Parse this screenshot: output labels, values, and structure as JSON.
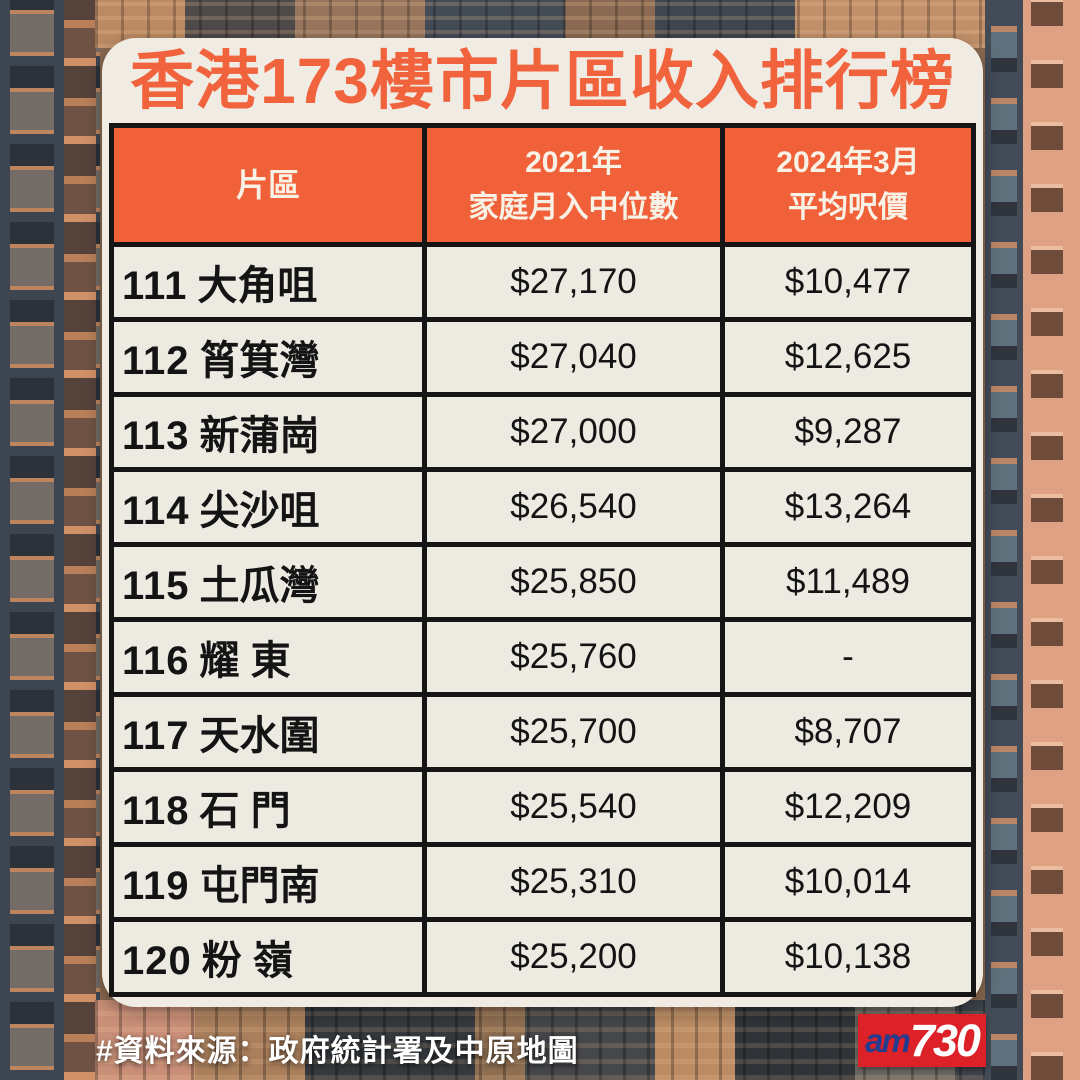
{
  "title": "香港173樓市片區收入排行榜",
  "table": {
    "headers": {
      "district": "片區",
      "income_line1": "2021年",
      "income_line2": "家庭月入中位數",
      "price_line1": "2024年3月",
      "price_line2": "平均呎價"
    },
    "rows": [
      {
        "rank": "111",
        "district": "大角咀",
        "income": "$27,170",
        "price": "$10,477"
      },
      {
        "rank": "112",
        "district": "筲箕灣",
        "income": "$27,040",
        "price": "$12,625"
      },
      {
        "rank": "113",
        "district": "新蒲崗",
        "income": "$27,000",
        "price": "$9,287"
      },
      {
        "rank": "114",
        "district": "尖沙咀",
        "income": "$26,540",
        "price": "$13,264"
      },
      {
        "rank": "115",
        "district": "土瓜灣",
        "income": "$25,850",
        "price": "$11,489"
      },
      {
        "rank": "116",
        "district": "耀 東",
        "income": "$25,760",
        "price": "-"
      },
      {
        "rank": "117",
        "district": "天水圍",
        "income": "$25,700",
        "price": "$8,707"
      },
      {
        "rank": "118",
        "district": "石 門",
        "income": "$25,540",
        "price": "$12,209"
      },
      {
        "rank": "119",
        "district": "屯門南",
        "income": "$25,310",
        "price": "$10,014"
      },
      {
        "rank": "120",
        "district": "粉 嶺",
        "income": "$25,200",
        "price": "$10,138"
      }
    ]
  },
  "footer": {
    "source": "#資料來源：政府統計署及中原地圖"
  },
  "logo": {
    "am": "am",
    "number": "730"
  },
  "colors": {
    "accent": "#f1633c",
    "accent_dark": "#f0613a",
    "card_bg": "#f0ece4",
    "cell_bg": "#edeae2",
    "border": "#151515",
    "logo_red": "#dc2128",
    "logo_blue": "#233c8e"
  },
  "chart_data": {
    "type": "table",
    "title": "香港173樓市片區收入排行榜",
    "columns": [
      "片區",
      "2021年家庭月入中位數",
      "2024年3月平均呎價"
    ],
    "rows": [
      [
        "111 大角咀",
        27170,
        10477
      ],
      [
        "112 筲箕灣",
        27040,
        12625
      ],
      [
        "113 新蒲崗",
        27000,
        9287
      ],
      [
        "114 尖沙咀",
        26540,
        13264
      ],
      [
        "115 土瓜灣",
        25850,
        11489
      ],
      [
        "116 耀東",
        25760,
        null
      ],
      [
        "117 天水圍",
        25700,
        8707
      ],
      [
        "118 石門",
        25540,
        12209
      ],
      [
        "119 屯門南",
        25310,
        10014
      ],
      [
        "120 粉嶺",
        25200,
        10138
      ]
    ],
    "units": {
      "income": "HKD/month",
      "price": "HKD/sq-ft"
    },
    "source": "政府統計署及中原地圖"
  }
}
